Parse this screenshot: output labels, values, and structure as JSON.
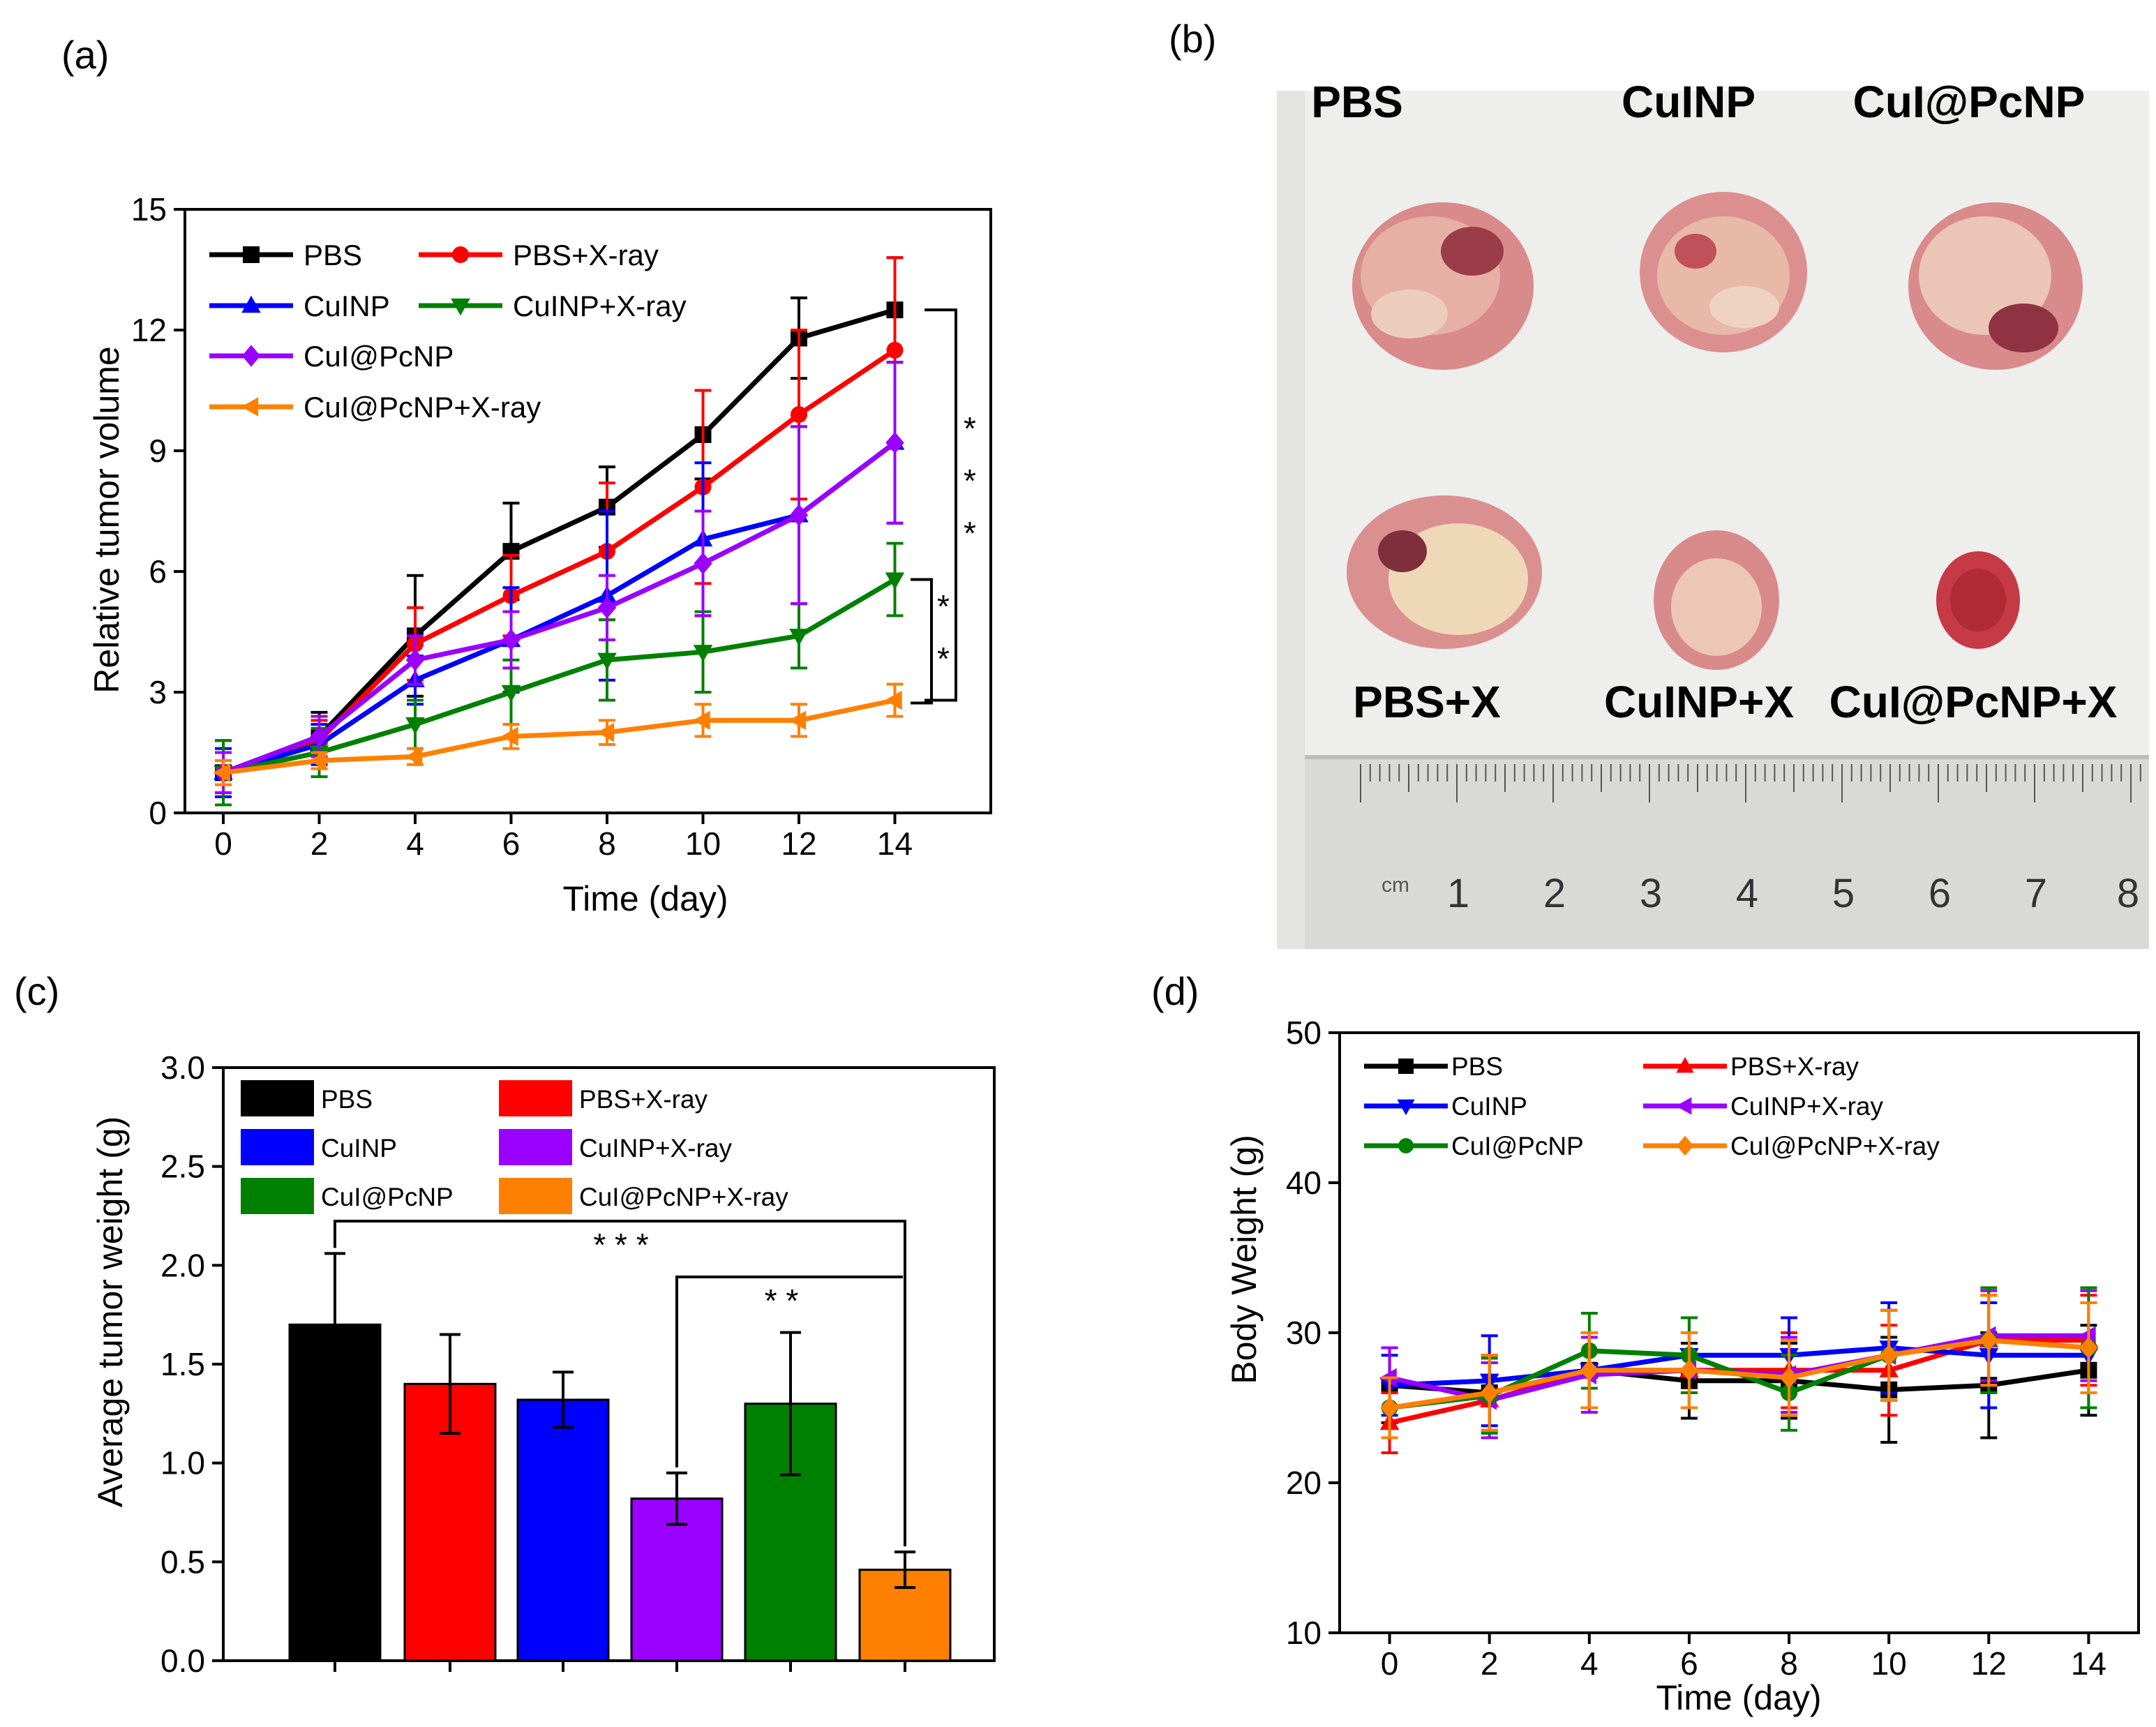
{
  "colors": {
    "PBS": "#000000",
    "PBS+X-ray": "#ff0000",
    "CuINP": "#0000ff",
    "CuINP+X-ray": "#008000",
    "CuI@PcNP": "#9900ff",
    "CuI@PcNP+X-ray": "#ff8000",
    "bar_PBS": "#000000",
    "bar_PBS+X-ray": "#ff0000",
    "bar_CuINP": "#0000ff",
    "bar_CuINP+X-ray": "#9900ff",
    "bar_CuI@PcNP": "#008000",
    "bar_CuI@PcNP+X-ray": "#ff8000",
    "d_PBS": "#000000",
    "d_PBS+X-ray": "#ff0000",
    "d_CuINP": "#0000ff",
    "d_CuINP+X-ray": "#9900ff",
    "d_CuI@PcNP": "#008000",
    "d_CuI@PcNP+X-ray": "#ff8000"
  },
  "panels": {
    "a": "(a)",
    "b": "(b)",
    "c": "(c)",
    "d": "(d)"
  },
  "photo": {
    "labels_top": [
      "PBS",
      "CuINP",
      "CuI@PcNP"
    ],
    "labels_bottom": [
      "PBS+X",
      "CuINP+X",
      "CuI@PcNP+X"
    ],
    "ruler_numbers": [
      "1",
      "2",
      "3",
      "4",
      "5",
      "6",
      "7",
      "8"
    ],
    "ruler_unit": "cm"
  },
  "chart_data": [
    {
      "id": "a",
      "type": "line",
      "xlabel": "Time (day)",
      "ylabel": "Relative tumor volume",
      "x": [
        0,
        2,
        4,
        6,
        8,
        10,
        12,
        14
      ],
      "xlim": [
        -0.8,
        16
      ],
      "ylim": [
        0,
        15
      ],
      "xticks": [
        0,
        2,
        4,
        6,
        8,
        10,
        12,
        14
      ],
      "yticks": [
        0,
        3,
        6,
        9,
        12,
        15
      ],
      "legend": "top-left",
      "series": [
        {
          "name": "PBS",
          "marker": "square",
          "values": [
            1.0,
            1.9,
            4.4,
            6.5,
            7.6,
            9.4,
            11.8,
            12.5
          ],
          "err": [
            0.8,
            0.6,
            1.5,
            1.2,
            1.0,
            1.1,
            1.0,
            1.3
          ]
        },
        {
          "name": "PBS+X-ray",
          "marker": "circle",
          "values": [
            1.0,
            1.8,
            4.2,
            5.4,
            6.5,
            8.1,
            9.9,
            11.5
          ],
          "err": [
            0.5,
            0.5,
            0.9,
            1.0,
            1.7,
            2.4,
            2.1,
            2.3
          ]
        },
        {
          "name": "CuINP",
          "marker": "triangle-up",
          "values": [
            1.0,
            1.7,
            3.3,
            4.3,
            5.4,
            6.8,
            7.4,
            9.2
          ],
          "err": [
            0.6,
            0.5,
            0.6,
            1.3,
            2.1,
            1.9,
            2.2,
            2.0
          ]
        },
        {
          "name": "CuINP+X-ray",
          "marker": "triangle-down",
          "values": [
            1.0,
            1.5,
            2.2,
            3.0,
            3.8,
            4.0,
            4.4,
            5.8
          ],
          "err": [
            0.8,
            0.6,
            0.6,
            0.8,
            1.0,
            1.0,
            0.8,
            0.9
          ]
        },
        {
          "name": "CuI@PcNP",
          "marker": "diamond",
          "values": [
            1.0,
            1.9,
            3.8,
            4.3,
            5.1,
            6.2,
            7.4,
            9.2
          ],
          "err": [
            0.5,
            0.5,
            0.6,
            0.7,
            0.8,
            1.3,
            2.2,
            2.0
          ]
        },
        {
          "name": "CuI@PcNP+X-ray",
          "marker": "triangle-left",
          "values": [
            1.0,
            1.3,
            1.4,
            1.9,
            2.0,
            2.3,
            2.3,
            2.8
          ],
          "err": [
            0.3,
            0.2,
            0.2,
            0.3,
            0.3,
            0.4,
            0.4,
            0.4
          ]
        }
      ],
      "annotations": [
        "* * *",
        "* *"
      ]
    },
    {
      "id": "c",
      "type": "bar",
      "xlabel": "",
      "ylabel": "Average tumor weight (g)",
      "categories": [
        "PBS",
        "PBS+X-ray",
        "CuINP",
        "CuINP+X-ray",
        "CuI@PcNP",
        "CuI@PcNP+X-ray"
      ],
      "values": [
        1.7,
        1.4,
        1.32,
        0.82,
        1.3,
        0.46
      ],
      "err": [
        0.36,
        0.25,
        0.14,
        0.13,
        0.36,
        0.09
      ],
      "ylim": [
        0,
        3.0
      ],
      "yticks": [
        "0.0",
        "0.5",
        "1.0",
        "1.5",
        "2.0",
        "2.5",
        "3.0"
      ],
      "legend": "top",
      "annotations": [
        "* * *",
        "* *"
      ]
    },
    {
      "id": "d",
      "type": "line",
      "xlabel": "Time (day)",
      "ylabel": "Body Weight (g)",
      "x": [
        0,
        2,
        4,
        6,
        8,
        10,
        12,
        14
      ],
      "xlim": [
        -1,
        15
      ],
      "ylim": [
        10,
        50
      ],
      "xticks": [
        0,
        2,
        4,
        6,
        8,
        10,
        12,
        14
      ],
      "yticks": [
        10,
        20,
        30,
        40,
        50
      ],
      "legend": "top",
      "series": [
        {
          "name": "PBS",
          "marker": "square",
          "values": [
            26.5,
            26.0,
            27.5,
            26.8,
            26.8,
            26.2,
            26.5,
            27.5
          ],
          "err": [
            2.5,
            2.5,
            2.5,
            2.5,
            2.5,
            3.5,
            3.5,
            3.0
          ]
        },
        {
          "name": "PBS+X-ray",
          "marker": "triangle-up",
          "values": [
            24.0,
            25.5,
            27.5,
            27.5,
            27.5,
            27.5,
            29.5,
            29.5
          ],
          "err": [
            2.0,
            2.5,
            2.5,
            2.5,
            2.5,
            3.0,
            3.0,
            3.0
          ]
        },
        {
          "name": "CuINP",
          "marker": "triangle-down",
          "values": [
            26.5,
            26.8,
            27.5,
            28.5,
            28.5,
            29.0,
            28.5,
            28.5
          ],
          "err": [
            2.0,
            3.0,
            2.5,
            2.5,
            2.5,
            3.0,
            3.5,
            3.5
          ]
        },
        {
          "name": "CuINP+X-ray",
          "marker": "triangle-left",
          "values": [
            27.0,
            25.5,
            27.2,
            27.5,
            27.2,
            28.5,
            29.8,
            29.8
          ],
          "err": [
            2.0,
            2.5,
            2.5,
            2.5,
            2.5,
            3.0,
            3.0,
            3.0
          ]
        },
        {
          "name": "CuI@PcNP",
          "marker": "circle",
          "values": [
            25.0,
            25.8,
            28.8,
            28.5,
            26.0,
            28.5,
            29.5,
            29.0
          ],
          "err": [
            2.0,
            2.5,
            2.5,
            2.5,
            2.5,
            3.0,
            3.5,
            4.0
          ]
        },
        {
          "name": "CuI@PcNP+X-ray",
          "marker": "diamond",
          "values": [
            25.0,
            26.0,
            27.5,
            27.5,
            27.0,
            28.5,
            29.5,
            29.0
          ],
          "err": [
            2.0,
            2.5,
            2.5,
            2.5,
            2.5,
            3.0,
            3.0,
            3.0
          ]
        }
      ]
    }
  ]
}
